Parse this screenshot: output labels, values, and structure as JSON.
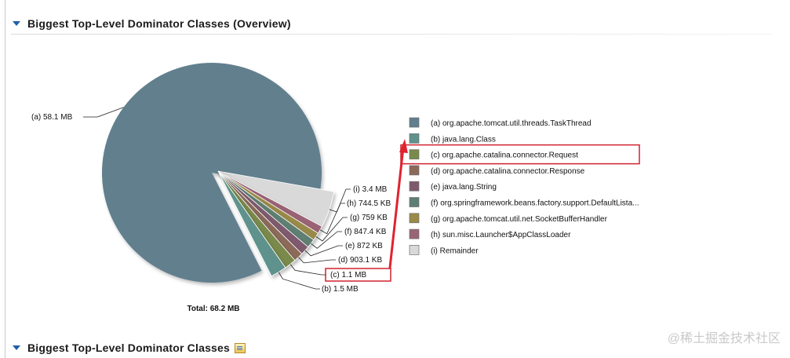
{
  "sections": [
    {
      "title": "Biggest Top-Level Dominator Classes (Overview)"
    },
    {
      "title": "Biggest Top-Level Dominator Classes"
    }
  ],
  "chart_data": {
    "type": "pie",
    "title": "",
    "total_label": "Total: 68.2 MB",
    "slices": [
      {
        "id": "(a)",
        "value_label": "58.1 MB",
        "value_mb": 58.1,
        "name": "org.apache.tomcat.util.threads.TaskThread",
        "color": "#627f8e"
      },
      {
        "id": "(b)",
        "value_label": "1.5 MB",
        "value_mb": 1.5,
        "name": "java.lang.Class",
        "color": "#5f928c"
      },
      {
        "id": "(c)",
        "value_label": "1.1 MB",
        "value_mb": 1.1,
        "name": "org.apache.catalina.connector.Request",
        "color": "#7a8a4c"
      },
      {
        "id": "(d)",
        "value_label": "903.1 KB",
        "value_mb": 0.882,
        "name": "org.apache.catalina.connector.Response",
        "color": "#8c6a5a"
      },
      {
        "id": "(e)",
        "value_label": "872 KB",
        "value_mb": 0.852,
        "name": "java.lang.String",
        "color": "#7f5a6e"
      },
      {
        "id": "(f)",
        "value_label": "847.4 KB",
        "value_mb": 0.828,
        "name": "org.springframework.beans.factory.support.DefaultLista...",
        "color": "#5f7f73"
      },
      {
        "id": "(g)",
        "value_label": "759 KB",
        "value_mb": 0.741,
        "name": "org.apache.tomcat.util.net.SocketBufferHandler",
        "color": "#9a8a4a"
      },
      {
        "id": "(h)",
        "value_label": "744.5 KB",
        "value_mb": 0.727,
        "name": "sun.misc.Launcher$AppClassLoader",
        "color": "#9a6474"
      },
      {
        "id": "(i)",
        "value_label": "3.4 MB",
        "value_mb": 3.4,
        "name": "Remainder",
        "color": "#d9d9d9"
      }
    ],
    "highlighted": "(c)",
    "legend_placement": "right"
  },
  "watermark": "@稀土掘金技术社区"
}
